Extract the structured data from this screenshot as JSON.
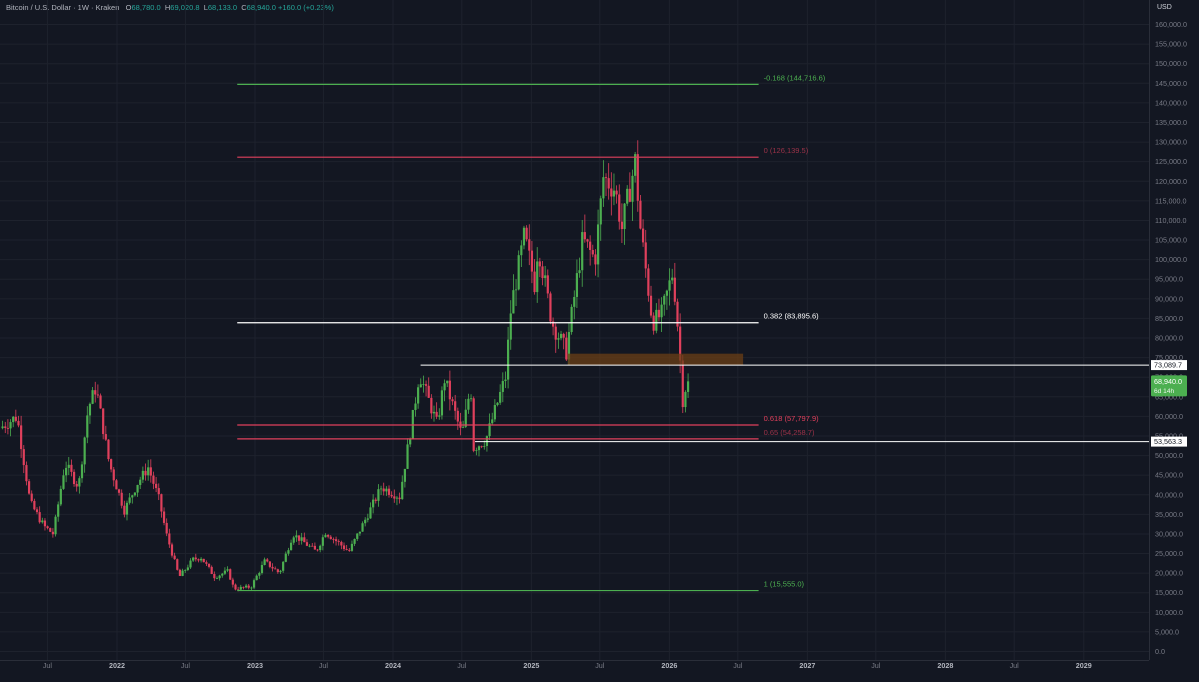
{
  "header": {
    "symbol": "Bitcoin / U.S. Dollar · 1W · Kraken",
    "open_label": "O",
    "open": "68,780.0",
    "high_label": "H",
    "high": "69,020.8",
    "low_label": "L",
    "low": "68,133.0",
    "close_label": "C",
    "close": "68,940.0",
    "change": "+160.0 (+0.23%)"
  },
  "currency_button": "USD",
  "colors": {
    "background": "#131722",
    "up": "#4caf50",
    "down": "#e0405c",
    "grid": "#1e222d",
    "axis_text": "#787b86",
    "fib_green": "#4caf50",
    "fib_red": "#e0405c",
    "fib_white": "#ffffff",
    "zone": "#6b3f16"
  },
  "chart_data": {
    "type": "candlestick",
    "title": "Bitcoin / U.S. Dollar · 1W · Kraken",
    "y_axis": {
      "min": 0,
      "max": 160000,
      "step": 5000,
      "ticks": [
        "160,000.0",
        "155,000.0",
        "150,000.0",
        "145,000.0",
        "140,000.0",
        "135,000.0",
        "130,000.0",
        "125,000.0",
        "120,000.0",
        "115,000.0",
        "110,000.0",
        "105,000.0",
        "100,000.0",
        "95,000.0",
        "90,000.0",
        "85,000.0",
        "80,000.0",
        "75,000.0",
        "70,000.0",
        "65,000.0",
        "60,000.0",
        "55,000.0",
        "50,000.0",
        "45,000.0",
        "40,000.0",
        "35,000.0",
        "30,000.0",
        "25,000.0",
        "20,000.0",
        "15,000.0",
        "10,000.0",
        "5,000.0",
        "0.0"
      ],
      "scale": "linear"
    },
    "x_axis": {
      "ticks": [
        {
          "label": "Jul",
          "date": "2021-07-01",
          "bold": false
        },
        {
          "label": "2022",
          "date": "2022-01-01",
          "bold": true
        },
        {
          "label": "Jul",
          "date": "2022-07-01",
          "bold": false
        },
        {
          "label": "2023",
          "date": "2023-01-01",
          "bold": true
        },
        {
          "label": "Jul",
          "date": "2023-07-01",
          "bold": false
        },
        {
          "label": "2024",
          "date": "2024-01-01",
          "bold": true
        },
        {
          "label": "Jul",
          "date": "2024-07-01",
          "bold": false
        },
        {
          "label": "2025",
          "date": "2025-01-01",
          "bold": true
        },
        {
          "label": "Jul",
          "date": "2025-07-01",
          "bold": false
        },
        {
          "label": "2026",
          "date": "2026-01-01",
          "bold": true
        },
        {
          "label": "Jul",
          "date": "2026-07-01",
          "bold": false
        },
        {
          "label": "2027",
          "date": "2027-01-01",
          "bold": true
        },
        {
          "label": "Jul",
          "date": "2027-07-01",
          "bold": false
        },
        {
          "label": "2028",
          "date": "2028-01-01",
          "bold": true
        },
        {
          "label": "Jul",
          "date": "2028-07-01",
          "bold": false
        },
        {
          "label": "2029",
          "date": "2029-01-01",
          "bold": true
        }
      ]
    },
    "price_keypoints": [
      [
        "2021-03-01",
        57000
      ],
      [
        "2021-04-15",
        60000
      ],
      [
        "2021-05-20",
        38000
      ],
      [
        "2021-06-25",
        32000
      ],
      [
        "2021-07-20",
        30000
      ],
      [
        "2021-08-20",
        48000
      ],
      [
        "2021-09-25",
        42000
      ],
      [
        "2021-10-20",
        62000
      ],
      [
        "2021-11-10",
        67500
      ],
      [
        "2021-12-15",
        48000
      ],
      [
        "2022-01-24",
        36000
      ],
      [
        "2022-02-28",
        43000
      ],
      [
        "2022-03-28",
        47000
      ],
      [
        "2022-04-25",
        39000
      ],
      [
        "2022-05-15",
        30000
      ],
      [
        "2022-06-18",
        19000
      ],
      [
        "2022-07-25",
        23500
      ],
      [
        "2022-08-15",
        24000
      ],
      [
        "2022-09-20",
        19000
      ],
      [
        "2022-10-25",
        20500
      ],
      [
        "2022-11-10",
        16000
      ],
      [
        "2022-12-25",
        16500
      ],
      [
        "2023-01-30",
        23000
      ],
      [
        "2023-03-10",
        20000
      ],
      [
        "2023-04-15",
        30000
      ],
      [
        "2023-06-15",
        25500
      ],
      [
        "2023-07-10",
        30500
      ],
      [
        "2023-09-10",
        25500
      ],
      [
        "2023-10-25",
        34000
      ],
      [
        "2023-12-05",
        42000
      ],
      [
        "2024-01-22",
        39500
      ],
      [
        "2024-02-28",
        61000
      ],
      [
        "2024-03-14",
        71000
      ],
      [
        "2024-04-30",
        58000
      ],
      [
        "2024-05-20",
        69500
      ],
      [
        "2024-07-05",
        55000
      ],
      [
        "2024-07-28",
        68000
      ],
      [
        "2024-08-05",
        52000
      ],
      [
        "2024-09-06",
        54000
      ],
      [
        "2024-10-28",
        70000
      ],
      [
        "2024-11-12",
        88000
      ],
      [
        "2024-12-17",
        106000
      ],
      [
        "2025-01-13",
        94000
      ],
      [
        "2025-01-22",
        104000
      ],
      [
        "2025-02-28",
        84000
      ],
      [
        "2025-04-07",
        76500
      ],
      [
        "2025-05-20",
        105000
      ],
      [
        "2025-06-22",
        100000
      ],
      [
        "2025-07-14",
        121000
      ],
      [
        "2025-08-14",
        118000
      ],
      [
        "2025-09-01",
        108000
      ],
      [
        "2025-10-06",
        125000
      ],
      [
        "2025-10-20",
        108000
      ],
      [
        "2025-11-21",
        84000
      ],
      [
        "2025-12-15",
        86000
      ],
      [
        "2026-01-14",
        97000
      ],
      [
        "2026-02-01",
        77000
      ],
      [
        "2026-02-06",
        63000
      ],
      [
        "2026-02-20",
        68940
      ]
    ],
    "fibonacci_levels": [
      {
        "ratio": "-0.168",
        "price": 144716.6,
        "label": "-0.168 (144,716.6)",
        "color": "#4caf50"
      },
      {
        "ratio": "0",
        "price": 126139.5,
        "label": "0 (126,139.5)",
        "color": "#e0405c"
      },
      {
        "ratio": "0.382",
        "price": 83895.6,
        "label": "0.382 (83,895.6)",
        "color": "#ffffff"
      },
      {
        "ratio": "0.618",
        "price": 57797.9,
        "label": "0.618 (57,797.9)",
        "color": "#e0405c"
      },
      {
        "ratio": "0.65",
        "price": 54258.7,
        "label": "0.65 (54,258.7)",
        "color": "#e0405c"
      },
      {
        "ratio": "1",
        "price": 15555.0,
        "label": "1 (15,555.0)",
        "color": "#4caf50"
      }
    ],
    "fib_start_date": "2022-11-15",
    "fib_end_date": "2026-08-25",
    "horizontal_lines": [
      {
        "price": 73089.7,
        "label": "73,089.7",
        "start_date": "2024-03-14"
      },
      {
        "price": 53563.3,
        "label": "53,563.3",
        "start_date": "2024-08-05"
      }
    ],
    "zone": {
      "start_date": "2025-04-07",
      "end_date": "2026-07-15",
      "low": 73000,
      "high": 76000
    },
    "last_price": {
      "value": 68940.0,
      "label": "68,940.0",
      "countdown": "6d 14h"
    }
  }
}
